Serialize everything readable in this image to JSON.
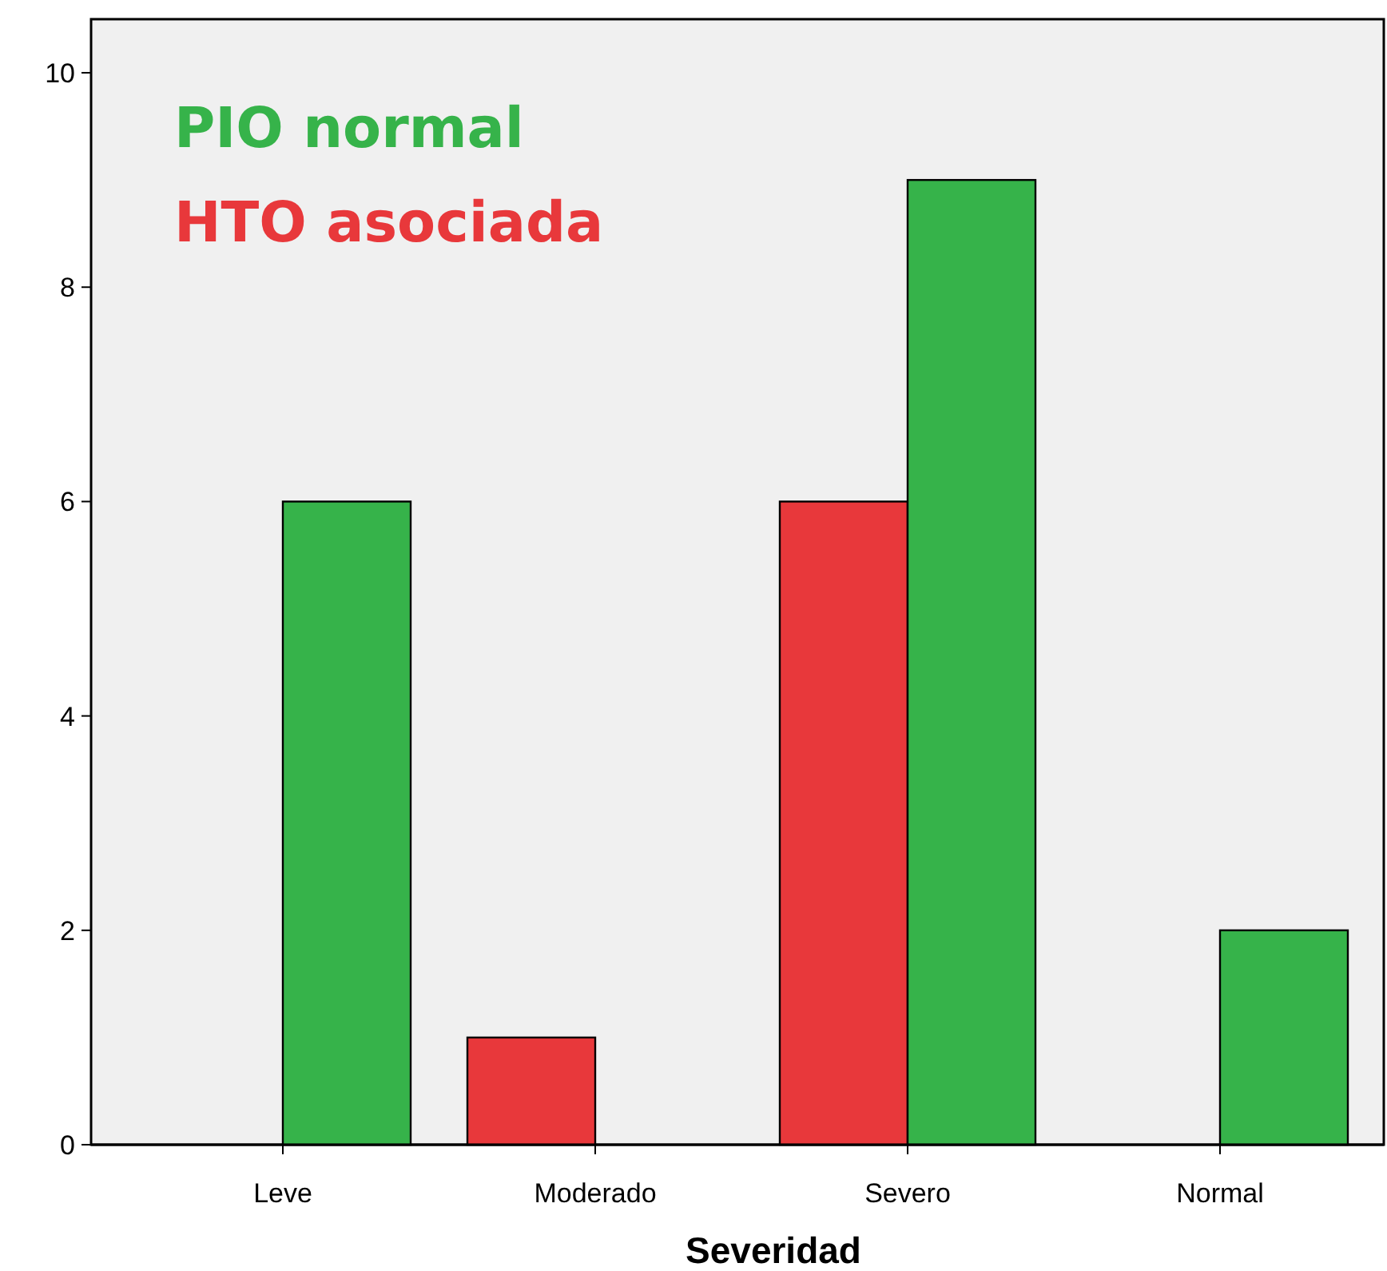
{
  "chart_data": {
    "type": "bar",
    "xlabel": "Severidad",
    "categories": [
      "Leve",
      "Moderado",
      "Severo",
      "Normal"
    ],
    "series": [
      {
        "name": "HTO asociada",
        "color": "#e8383b",
        "values": [
          null,
          1,
          6,
          null
        ]
      },
      {
        "name": "PIO normal",
        "color": "#36b34a",
        "values": [
          6,
          null,
          9,
          2
        ]
      }
    ],
    "ylim": [
      0,
      10.5
    ],
    "yticks": [
      0,
      2,
      4,
      6,
      8,
      10
    ],
    "grid": false,
    "legend": "top left"
  }
}
